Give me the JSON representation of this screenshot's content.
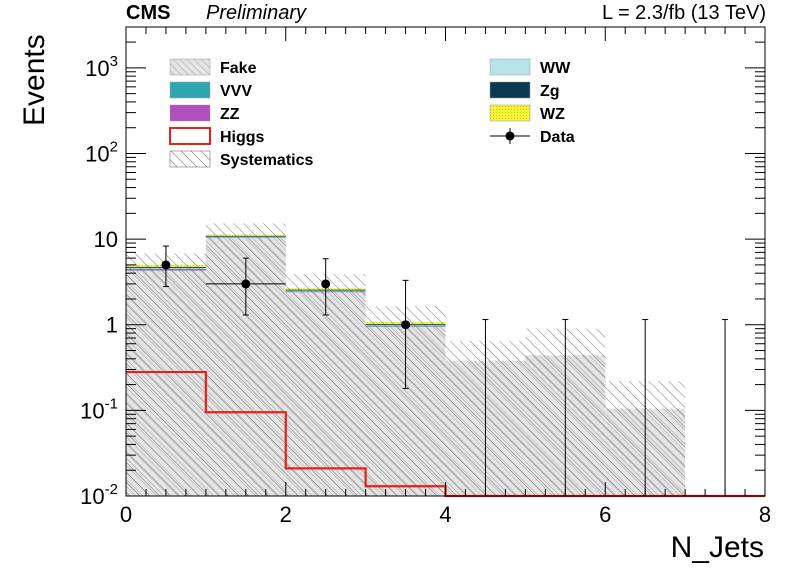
{
  "header": {
    "experiment": "CMS",
    "status": "Preliminary",
    "lumi": "L = 2.3/fb (13 TeV)"
  },
  "legend": {
    "placement": "top",
    "entries": [
      {
        "label": "Fake",
        "kind": "fill",
        "color": "#c8c8c8"
      },
      {
        "label": "WW",
        "kind": "fill",
        "color": "#b7e3ea"
      },
      {
        "label": "VVV",
        "kind": "fill",
        "color": "#2fa7b3"
      },
      {
        "label": "Zg",
        "kind": "fill",
        "color": "#0b3a50"
      },
      {
        "label": "ZZ",
        "kind": "fill",
        "color": "#b04fc0"
      },
      {
        "label": "WZ",
        "kind": "fill",
        "color": "#f5f53a"
      },
      {
        "label": "Higgs",
        "kind": "line",
        "color": "#e8201c"
      },
      {
        "label": "Data",
        "kind": "marker",
        "color": "#000000"
      },
      {
        "label": "Systematics",
        "kind": "hatch",
        "color": "#555555"
      }
    ]
  },
  "chart_data": {
    "type": "bar",
    "histogram": true,
    "stacked": true,
    "xlabel": "N_Jets",
    "ylabel": "Events",
    "xlim": [
      0,
      8
    ],
    "ylim": [
      0.01,
      3000
    ],
    "log_y": true,
    "grid": false,
    "x_ticks": [
      "0",
      "2",
      "4",
      "6",
      "8"
    ],
    "y_ticks": [
      {
        "base": "10",
        "exp": "-2",
        "value": 0.01
      },
      {
        "base": "10",
        "exp": "-1",
        "value": 0.1
      },
      {
        "base": "1",
        "exp": "",
        "value": 1
      },
      {
        "base": "10",
        "exp": "",
        "value": 10
      },
      {
        "base": "10",
        "exp": "2",
        "value": 100
      },
      {
        "base": "10",
        "exp": "3",
        "value": 1000
      }
    ],
    "bin_edges": [
      0,
      1,
      2,
      3,
      4,
      5,
      6,
      7,
      8
    ],
    "series": [
      {
        "name": "Fake",
        "values": [
          4.3,
          10.5,
          2.4,
          0.95,
          0.38,
          0.44,
          0.105,
          0
        ],
        "color": "#c8c8c8"
      },
      {
        "name": "ZZ",
        "values": [
          0.15,
          0.12,
          0.05,
          0.02,
          0,
          0,
          0,
          0
        ],
        "color": "#b04fc0"
      },
      {
        "name": "VVV",
        "values": [
          0.06,
          0.05,
          0.02,
          0.01,
          0,
          0,
          0,
          0
        ],
        "color": "#2fa7b3"
      },
      {
        "name": "WW",
        "values": [
          0.1,
          0.1,
          0.04,
          0.02,
          0,
          0,
          0,
          0
        ],
        "color": "#b7e3ea"
      },
      {
        "name": "Zg",
        "values": [
          0.12,
          0.15,
          0.06,
          0.02,
          0,
          0,
          0,
          0
        ],
        "color": "#0b3a50"
      },
      {
        "name": "WZ",
        "values": [
          0.25,
          0.35,
          0.1,
          0.05,
          0,
          0,
          0,
          0
        ],
        "color": "#f5f53a"
      }
    ],
    "higgs": {
      "name": "Higgs",
      "values": [
        0.28,
        0.095,
        0.021,
        0.013,
        0.01,
        0.01,
        0.01,
        0.01
      ]
    },
    "systematics": {
      "name": "Systematics",
      "up": [
        6.8,
        15.3,
        3.9,
        1.65,
        0.65,
        0.9,
        0.22,
        0
      ],
      "down": [
        0.01,
        0.01,
        0.01,
        0.01,
        0.01,
        0.01,
        0.01,
        0
      ]
    },
    "data": {
      "name": "Data",
      "x": [
        0.5,
        1.5,
        2.5,
        3.5,
        4.5,
        5.5,
        6.5,
        7.5
      ],
      "y": [
        5,
        3,
        3,
        1,
        0,
        0,
        0,
        0
      ],
      "err_hi": [
        8.3,
        6.0,
        5.9,
        3.3,
        1.15,
        1.15,
        1.15,
        1.15
      ],
      "err_lo": [
        2.8,
        1.3,
        1.3,
        0.18,
        0.01,
        0.01,
        0.01,
        0.01
      ],
      "x_err_shown": [
        false,
        true,
        false,
        false,
        false,
        false,
        false,
        false
      ]
    }
  }
}
